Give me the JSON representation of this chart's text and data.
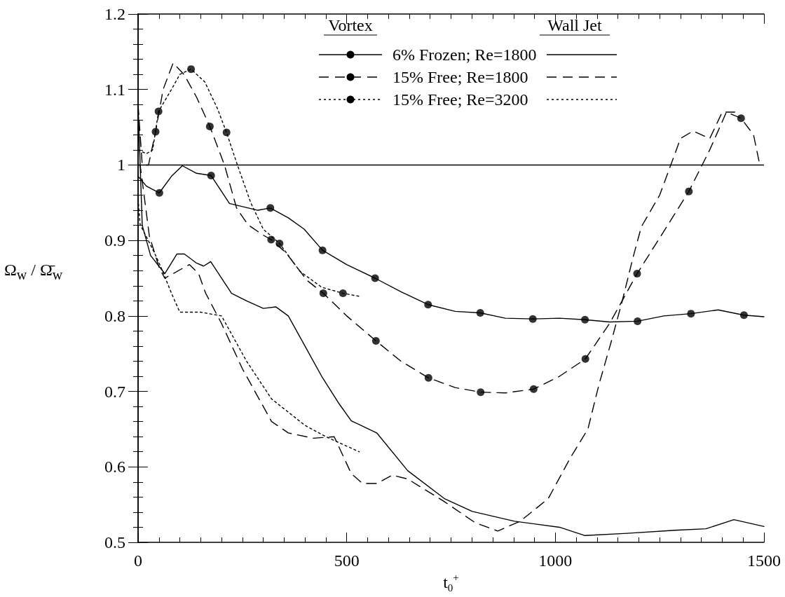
{
  "chart_data": {
    "type": "line",
    "xlabel": "t$_{0}$$^{+}$",
    "ylabel": "Ω$_{w}$ / Ω̄$_{w}$",
    "annotations": [
      "Vortex",
      "Wall Jet"
    ],
    "xlim": [
      0,
      1500
    ],
    "xticks": [
      0,
      500,
      1000,
      1500
    ],
    "ylim": [
      0.5,
      1.2
    ],
    "yticks": [
      0.5,
      0.6,
      0.7,
      0.8,
      0.9,
      1,
      1.1,
      1.2
    ],
    "grid": false,
    "legend": "top right",
    "ref_lines": [
      {
        "axis": "y",
        "value": 1,
        "color": "#000000",
        "line_style": "solid"
      }
    ],
    "series": [
      {
        "name": "6% Frozen; Re=1800",
        "color": "#000000",
        "line_style": "solid",
        "marker": "none",
        "x": [
          0,
          20,
          51,
          80,
          106,
          140,
          175,
          219,
          287,
          317,
          360,
          398,
          442,
          500,
          568,
          630,
          695,
          760,
          820,
          880,
          946,
          1010,
          1071,
          1130,
          1197,
          1260,
          1325,
          1390,
          1452,
          1500
        ],
        "values": [
          0.985,
          0.972,
          0.963,
          0.985,
          0.999,
          0.989,
          0.986,
          0.949,
          0.94,
          0.943,
          0.93,
          0.915,
          0.887,
          0.868,
          0.85,
          0.832,
          0.815,
          0.806,
          0.804,
          0.797,
          0.796,
          0.797,
          0.795,
          0.792,
          0.793,
          0.8,
          0.803,
          0.808,
          0.801,
          0.799
        ]
      },
      {
        "name": "15% Free; Re=1800",
        "color": "#000000",
        "line_style": "dashed",
        "marker": "none",
        "x": [
          0,
          10,
          25,
          42,
          60,
          84,
          110,
          140,
          172,
          207,
          236,
          263,
          297,
          319,
          354,
          405,
          444,
          500,
          570,
          630,
          696,
          760,
          821,
          880,
          948,
          1010,
          1072,
          1130,
          1196,
          1260,
          1320,
          1370,
          1410,
          1445,
          1475,
          1490
        ],
        "values": [
          1.08,
          1.0,
          1.0,
          1.044,
          1.1,
          1.135,
          1.12,
          1.09,
          1.051,
          1.0,
          0.943,
          0.921,
          0.908,
          0.901,
          0.884,
          0.847,
          0.83,
          0.8,
          0.767,
          0.74,
          0.718,
          0.705,
          0.699,
          0.698,
          0.703,
          0.72,
          0.743,
          0.79,
          0.856,
          0.912,
          0.965,
          1.02,
          1.07,
          1.062,
          1.04,
          1.0
        ]
      },
      {
        "name": "15% Free; Re=3200",
        "color": "#000000",
        "line_style": "dotted",
        "marker": "none",
        "x": [
          0,
          20,
          35,
          49,
          80,
          100,
          127,
          160,
          190,
          212,
          238,
          270,
          300,
          339,
          388,
          440,
          491,
          530
        ],
        "values": [
          1.02,
          1.015,
          1.02,
          1.071,
          1.1,
          1.12,
          1.127,
          1.11,
          1.075,
          1.043,
          1.0,
          0.95,
          0.915,
          0.896,
          0.859,
          0.838,
          0.83,
          0.826
        ]
      },
      {
        "color": "#000000",
        "line_style": "solid",
        "marker": "none",
        "x": [
          0,
          10,
          30,
          64,
          93,
          111,
          140,
          157,
          174,
          224,
          260,
          300,
          330,
          360,
          400,
          440,
          480,
          511,
          572,
          646,
          734,
          801,
          902,
          1010,
          1071,
          1172,
          1287,
          1361,
          1428,
          1500
        ],
        "values": [
          1.08,
          0.92,
          0.88,
          0.856,
          0.882,
          0.882,
          0.87,
          0.866,
          0.872,
          0.83,
          0.82,
          0.81,
          0.812,
          0.8,
          0.76,
          0.72,
          0.685,
          0.661,
          0.645,
          0.595,
          0.558,
          0.541,
          0.528,
          0.52,
          0.509,
          0.512,
          0.516,
          0.518,
          0.53,
          0.521
        ]
      },
      {
        "color": "#000000",
        "line_style": "dashed",
        "marker": "none",
        "x": [
          0,
          5,
          27,
          51,
          64,
          123,
          145,
          162,
          200,
          250,
          320,
          360,
          420,
          470,
          511,
          538,
          572,
          609,
          646,
          734,
          808,
          862,
          916,
          983,
          1037,
          1078,
          1105,
          1132,
          1159,
          1186,
          1206,
          1250,
          1300,
          1330,
          1370,
          1400,
          1430
        ],
        "values": [
          1.0,
          1.0,
          0.906,
          0.863,
          0.85,
          0.868,
          0.856,
          0.83,
          0.79,
          0.73,
          0.66,
          0.645,
          0.638,
          0.64,
          0.591,
          0.578,
          0.578,
          0.589,
          0.584,
          0.554,
          0.526,
          0.515,
          0.528,
          0.558,
          0.613,
          0.65,
          0.71,
          0.762,
          0.817,
          0.877,
          0.918,
          0.96,
          1.035,
          1.045,
          1.035,
          1.07,
          1.07
        ]
      },
      {
        "color": "#000000",
        "line_style": "dotted",
        "marker": "none",
        "x": [
          0,
          5,
          39,
          56,
          80,
          100,
          150,
          200,
          260,
          320,
          400,
          450,
          530
        ],
        "values": [
          0.955,
          0.921,
          0.884,
          0.863,
          0.83,
          0.805,
          0.805,
          0.8,
          0.74,
          0.69,
          0.655,
          0.64,
          0.62
        ]
      },
      {
        "type": "scatter",
        "color": "#000000",
        "marker": "circle",
        "x": [
          51,
          175,
          317,
          442,
          568,
          695,
          820,
          946,
          1071,
          1197,
          1325,
          1452
        ],
        "values": [
          0.963,
          0.986,
          0.943,
          0.887,
          0.85,
          0.815,
          0.804,
          0.796,
          0.795,
          0.793,
          0.803,
          0.801
        ]
      },
      {
        "type": "scatter",
        "color": "#000000",
        "marker": "circle",
        "x": [
          42,
          172,
          319,
          444,
          570,
          696,
          821,
          948,
          1072,
          1196,
          1320,
          1445
        ],
        "values": [
          1.044,
          1.051,
          0.901,
          0.83,
          0.767,
          0.718,
          0.699,
          0.703,
          0.743,
          0.856,
          0.965,
          1.062
        ]
      },
      {
        "type": "scatter",
        "color": "#000000",
        "marker": "circle",
        "x": [
          49,
          127,
          212,
          339,
          491
        ],
        "values": [
          1.071,
          1.127,
          1.043,
          0.896,
          0.83
        ]
      }
    ]
  }
}
